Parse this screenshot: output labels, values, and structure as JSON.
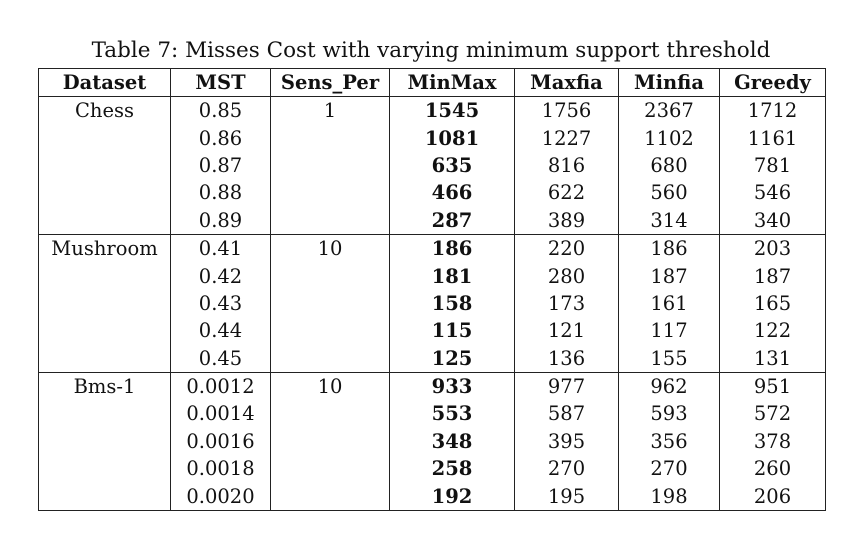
{
  "caption": "Table 7: Misses Cost with varying minimum support threshold",
  "headers": [
    "Dataset",
    "MST",
    "Sens_Per",
    "MinMax",
    "Maxfia",
    "Minfia",
    "Greedy"
  ],
  "groups": [
    {
      "dataset": "Chess",
      "sens_per": "1",
      "rows": [
        {
          "mst": "0.85",
          "minmax": "1545",
          "maxfia": "1756",
          "minfia": "2367",
          "greedy": "1712"
        },
        {
          "mst": "0.86",
          "minmax": "1081",
          "maxfia": "1227",
          "minfia": "1102",
          "greedy": "1161"
        },
        {
          "mst": "0.87",
          "minmax": "635",
          "maxfia": "816",
          "minfia": "680",
          "greedy": "781"
        },
        {
          "mst": "0.88",
          "minmax": "466",
          "maxfia": "622",
          "minfia": "560",
          "greedy": "546"
        },
        {
          "mst": "0.89",
          "minmax": "287",
          "maxfia": "389",
          "minfia": "314",
          "greedy": "340"
        }
      ]
    },
    {
      "dataset": "Mushroom",
      "sens_per": "10",
      "rows": [
        {
          "mst": "0.41",
          "minmax": "186",
          "maxfia": "220",
          "minfia": "186",
          "greedy": "203"
        },
        {
          "mst": "0.42",
          "minmax": "181",
          "maxfia": "280",
          "minfia": "187",
          "greedy": "187"
        },
        {
          "mst": "0.43",
          "minmax": "158",
          "maxfia": "173",
          "minfia": "161",
          "greedy": "165"
        },
        {
          "mst": "0.44",
          "minmax": "115",
          "maxfia": "121",
          "minfia": "117",
          "greedy": "122"
        },
        {
          "mst": "0.45",
          "minmax": "125",
          "maxfia": "136",
          "minfia": "155",
          "greedy": "131"
        }
      ]
    },
    {
      "dataset": "Bms-1",
      "sens_per": "10",
      "rows": [
        {
          "mst": "0.0012",
          "minmax": "933",
          "maxfia": "977",
          "minfia": "962",
          "greedy": "951"
        },
        {
          "mst": "0.0014",
          "minmax": "553",
          "maxfia": "587",
          "minfia": "593",
          "greedy": "572"
        },
        {
          "mst": "0.0016",
          "minmax": "348",
          "maxfia": "395",
          "minfia": "356",
          "greedy": "378"
        },
        {
          "mst": "0.0018",
          "minmax": "258",
          "maxfia": "270",
          "minfia": "270",
          "greedy": "260"
        },
        {
          "mst": "0.0020",
          "minmax": "192",
          "maxfia": "195",
          "minfia": "198",
          "greedy": "206"
        }
      ]
    }
  ]
}
